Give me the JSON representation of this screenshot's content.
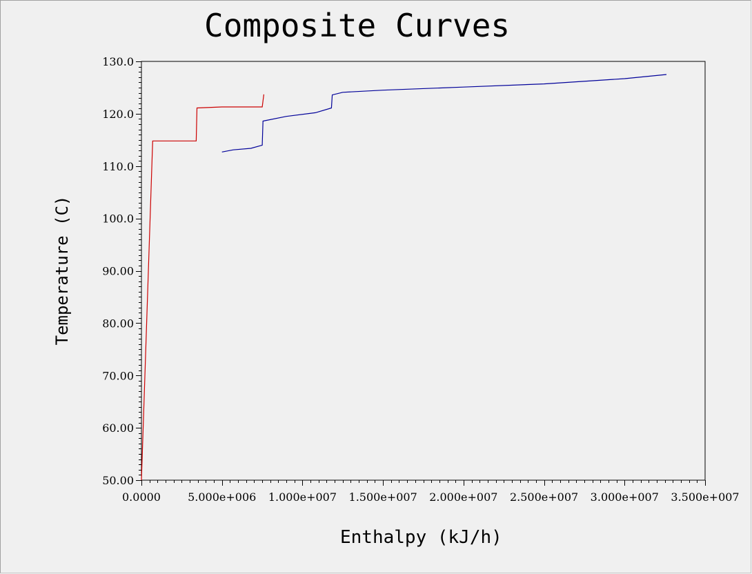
{
  "chart_data": {
    "type": "line",
    "title": "Composite Curves",
    "xlabel": "Enthalpy (kJ/h)",
    "ylabel": "Temperature (C)",
    "xlim": [
      0,
      35000000
    ],
    "ylim": [
      50,
      130
    ],
    "x_ticks": [
      {
        "value": 0,
        "label": "0.0000"
      },
      {
        "value": 5000000,
        "label": "5.000e+006"
      },
      {
        "value": 10000000,
        "label": "1.000e+007"
      },
      {
        "value": 15000000,
        "label": "1.500e+007"
      },
      {
        "value": 20000000,
        "label": "2.000e+007"
      },
      {
        "value": 25000000,
        "label": "2.500e+007"
      },
      {
        "value": 30000000,
        "label": "3.000e+007"
      },
      {
        "value": 35000000,
        "label": "3.500e+007"
      }
    ],
    "y_ticks": [
      {
        "value": 50,
        "label": "50.00"
      },
      {
        "value": 60,
        "label": "60.00"
      },
      {
        "value": 70,
        "label": "70.00"
      },
      {
        "value": 80,
        "label": "80.00"
      },
      {
        "value": 90,
        "label": "90.00"
      },
      {
        "value": 100,
        "label": "100.0"
      },
      {
        "value": 110,
        "label": "110.0"
      },
      {
        "value": 120,
        "label": "120.0"
      },
      {
        "value": 130,
        "label": "130.0"
      }
    ],
    "grid": false,
    "series": [
      {
        "color": "#cc0000",
        "points": [
          [
            0,
            50.0
          ],
          [
            700000,
            114.8
          ],
          [
            3400000,
            114.8
          ],
          [
            3450000,
            121.1
          ],
          [
            5000000,
            121.3
          ],
          [
            7500000,
            121.3
          ],
          [
            7600000,
            123.7
          ]
        ]
      },
      {
        "color": "#000099",
        "points": [
          [
            5000000,
            112.7
          ],
          [
            5700000,
            113.1
          ],
          [
            6800000,
            113.4
          ],
          [
            7500000,
            114.0
          ],
          [
            7550000,
            118.6
          ],
          [
            9000000,
            119.5
          ],
          [
            10800000,
            120.2
          ],
          [
            11800000,
            121.1
          ],
          [
            11850000,
            123.6
          ],
          [
            12500000,
            124.1
          ],
          [
            15000000,
            124.5
          ],
          [
            20000000,
            125.1
          ],
          [
            25000000,
            125.7
          ],
          [
            30000000,
            126.7
          ],
          [
            32600000,
            127.5
          ]
        ]
      }
    ]
  }
}
